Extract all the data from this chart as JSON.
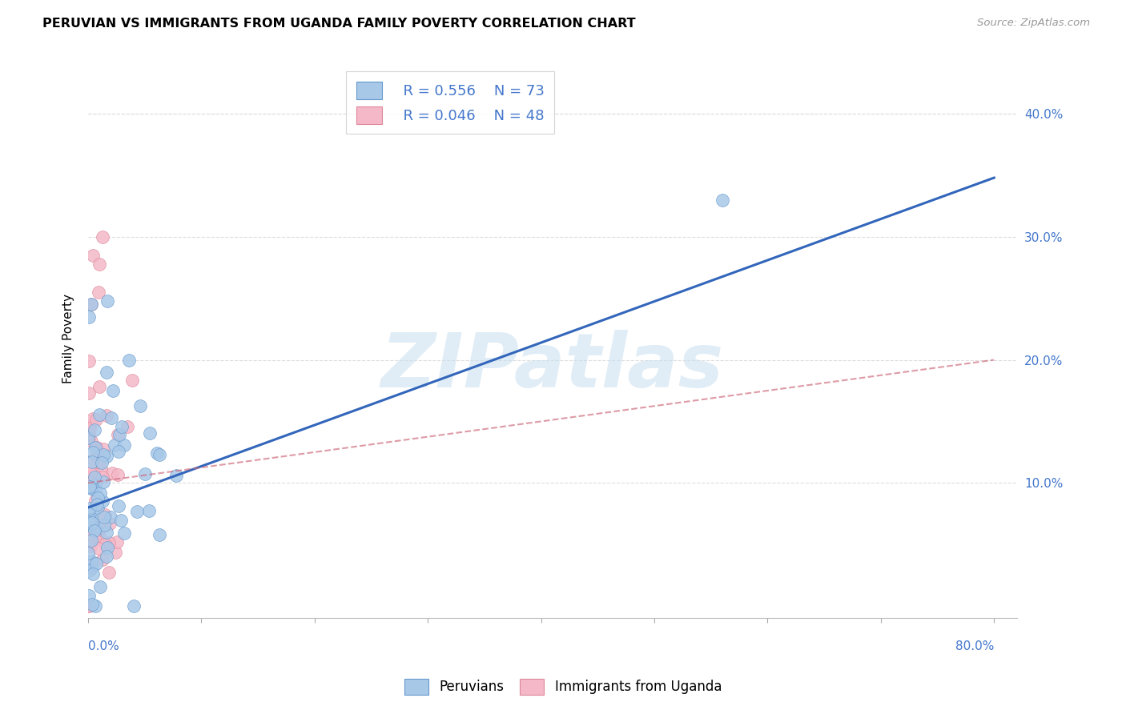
{
  "title": "PERUVIAN VS IMMIGRANTS FROM UGANDA FAMILY POVERTY CORRELATION CHART",
  "source": "Source: ZipAtlas.com",
  "ylabel": "Family Poverty",
  "ytick_vals": [
    0.1,
    0.2,
    0.3,
    0.4
  ],
  "xlim": [
    0.0,
    0.82
  ],
  "ylim": [
    -0.01,
    0.445
  ],
  "legend_r1": "R = 0.556",
  "legend_n1": "N = 73",
  "legend_r2": "R = 0.046",
  "legend_n2": "N = 48",
  "blue_color": "#a8c8e8",
  "blue_edge_color": "#6699cc",
  "pink_color": "#f4b8c8",
  "pink_edge_color": "#dd8899",
  "blue_line_color": "#3366bb",
  "pink_line_color": "#cc6677",
  "blue_slope": 0.335,
  "blue_intercept": 0.08,
  "pink_slope": 0.125,
  "pink_intercept": 0.1,
  "watermark_text": "ZIPatlas",
  "watermark_color": "#c8dff0",
  "background_color": "#ffffff",
  "grid_color": "#dddddd"
}
